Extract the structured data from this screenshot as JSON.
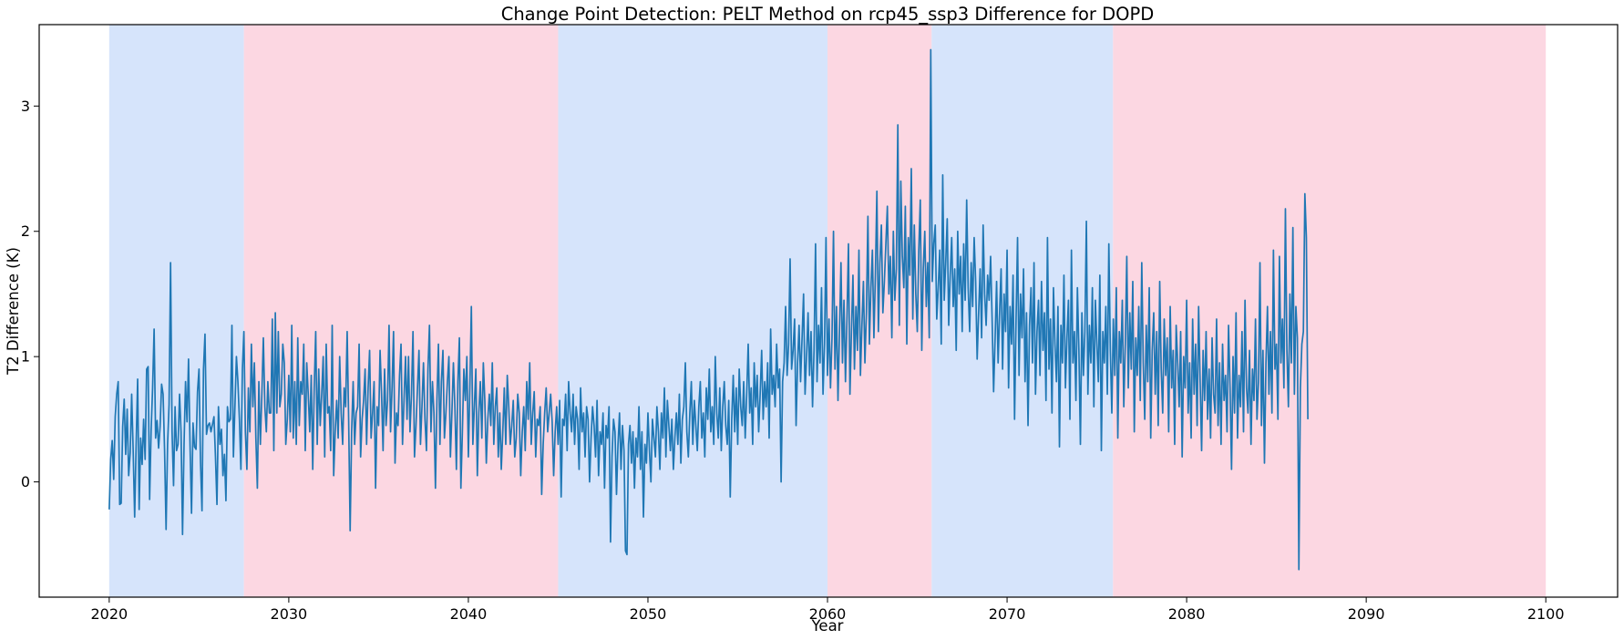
{
  "chart_data": {
    "type": "line",
    "title": "Change Point Detection: PELT Method on rcp45_ssp3 Difference for DOPD",
    "xlabel": "Year",
    "ylabel": "T2 Difference (K)",
    "xlim": [
      2016.1,
      2104.0
    ],
    "ylim": [
      -0.92,
      3.65
    ],
    "x_ticks": [
      2020,
      2030,
      2040,
      2050,
      2060,
      2070,
      2080,
      2090,
      2100
    ],
    "y_ticks": [
      0,
      1,
      2,
      3
    ],
    "grid": false,
    "series_color": "#1f77b4",
    "segment_colors": {
      "blue": "#d6e4fb",
      "pink": "#fcd7e2"
    },
    "segments": [
      {
        "start": 2020.0,
        "end": 2027.5,
        "color": "blue"
      },
      {
        "start": 2027.5,
        "end": 2045.0,
        "color": "pink"
      },
      {
        "start": 2045.0,
        "end": 2060.0,
        "color": "blue"
      },
      {
        "start": 2060.0,
        "end": 2065.8,
        "color": "pink"
      },
      {
        "start": 2065.8,
        "end": 2075.9,
        "color": "blue"
      },
      {
        "start": 2075.9,
        "end": 2100.0,
        "color": "pink"
      }
    ],
    "series": [
      {
        "x_start": 2020.0,
        "x_step": 0.0833333,
        "values": [
          -0.22,
          0.18,
          0.33,
          0.02,
          0.52,
          0.7,
          0.8,
          -0.18,
          -0.17,
          0.44,
          0.66,
          0.22,
          0.58,
          0.05,
          0.23,
          0.7,
          0.25,
          -0.28,
          0.3,
          0.82,
          -0.22,
          0.35,
          0.14,
          0.5,
          0.18,
          0.9,
          0.92,
          -0.14,
          0.41,
          0.75,
          1.22,
          0.35,
          0.49,
          0.27,
          0.44,
          0.78,
          0.7,
          0.25,
          -0.38,
          0.3,
          0.62,
          1.75,
          0.4,
          -0.03,
          0.6,
          0.25,
          0.3,
          0.7,
          0.4,
          -0.42,
          0.3,
          0.8,
          0.48,
          0.98,
          0.3,
          -0.25,
          0.47,
          0.28,
          0.26,
          0.72,
          0.9,
          0.16,
          -0.23,
          0.9,
          1.18,
          0.38,
          0.45,
          0.47,
          0.4,
          0.46,
          0.52,
          0.2,
          -0.18,
          0.6,
          0.3,
          0.42,
          0.05,
          0.22,
          -0.15,
          0.6,
          0.48,
          0.5,
          1.25,
          0.2,
          0.6,
          1.0,
          0.8,
          0.5,
          0.1,
          0.9,
          1.2,
          0.4,
          0.1,
          0.75,
          0.4,
          1.1,
          0.6,
          0.95,
          0.35,
          -0.05,
          0.8,
          0.3,
          0.7,
          1.15,
          0.6,
          0.4,
          0.8,
          0.55,
          0.55,
          1.3,
          0.25,
          1.35,
          0.55,
          1.2,
          0.6,
          0.7,
          1.1,
          0.95,
          0.3,
          0.5,
          0.85,
          0.4,
          1.25,
          0.35,
          0.8,
          0.3,
          1.15,
          0.45,
          0.8,
          0.7,
          1.1,
          0.25,
          0.95,
          0.7,
          0.4,
          0.85,
          0.1,
          0.75,
          1.2,
          0.3,
          0.9,
          0.45,
          0.7,
          1.0,
          0.2,
          1.1,
          0.55,
          0.6,
          0.25,
          1.25,
          0.05,
          0.4,
          0.65,
          0.35,
          1.0,
          0.55,
          0.3,
          0.75,
          0.6,
          1.2,
          0.5,
          -0.39,
          0.4,
          0.8,
          0.3,
          0.55,
          0.6,
          1.1,
          0.2,
          0.5,
          0.65,
          0.9,
          0.3,
          0.75,
          1.05,
          0.35,
          0.55,
          0.8,
          -0.05,
          0.6,
          0.45,
          1.05,
          0.7,
          0.25,
          0.9,
          0.45,
          0.65,
          1.25,
          0.4,
          0.75,
          1.2,
          0.15,
          0.55,
          0.45,
          0.85,
          1.1,
          0.3,
          0.65,
          1.0,
          0.5,
          1.0,
          0.4,
          0.7,
          1.2,
          0.2,
          0.45,
          0.75,
          1.05,
          0.3,
          0.6,
          0.95,
          0.5,
          0.25,
          0.9,
          1.25,
          0.4,
          0.8,
          0.55,
          -0.05,
          0.65,
          1.1,
          0.3,
          0.8,
          1.05,
          0.35,
          0.55,
          0.8,
          1.0,
          0.2,
          0.55,
          0.95,
          0.6,
          0.1,
          0.8,
          1.15,
          -0.05,
          0.4,
          0.9,
          0.65,
          1.0,
          0.2,
          0.75,
          1.4,
          0.3,
          0.6,
          0.9,
          0.05,
          0.55,
          0.8,
          0.35,
          0.95,
          0.65,
          0.15,
          0.5,
          0.7,
          0.45,
          0.95,
          0.3,
          0.6,
          0.75,
          0.2,
          0.55,
          0.1,
          0.4,
          0.75,
          0.3,
          0.85,
          0.6,
          0.3,
          0.45,
          0.65,
          0.2,
          0.35,
          0.7,
          0.55,
          0.05,
          0.4,
          0.6,
          0.25,
          0.8,
          0.5,
          0.95,
          0.3,
          0.55,
          0.72,
          0.2,
          0.5,
          0.45,
          0.6,
          -0.1,
          0.3,
          0.55,
          0.75,
          0.4,
          0.55,
          0.7,
          0.48,
          0.05,
          0.4,
          0.6,
          0.3,
          0.65,
          -0.12,
          0.5,
          0.45,
          0.7,
          0.25,
          0.8,
          0.55,
          0.4,
          0.7,
          0.3,
          0.6,
          0.5,
          0.1,
          0.75,
          0.4,
          0.55,
          0.2,
          0.6,
          0.5,
          0.0,
          0.35,
          0.6,
          0.45,
          0.2,
          0.65,
          0.05,
          0.4,
          0.3,
          0.55,
          -0.05,
          0.45,
          0.35,
          0.6,
          -0.48,
          0.2,
          0.5,
          0.4,
          -0.1,
          0.3,
          0.55,
          0.1,
          0.45,
          0.25,
          -0.55,
          -0.58,
          0.3,
          0.45,
          0.15,
          0.4,
          -0.05,
          0.35,
          0.2,
          0.6,
          0.1,
          0.4,
          -0.28,
          0.3,
          0.15,
          0.55,
          0.25,
          0.0,
          0.5,
          0.35,
          0.2,
          0.6,
          0.4,
          0.1,
          0.55,
          0.35,
          0.75,
          0.2,
          0.65,
          0.45,
          0.25,
          0.5,
          0.1,
          0.35,
          0.55,
          0.3,
          0.7,
          0.15,
          0.5,
          0.6,
          0.95,
          0.4,
          0.2,
          0.55,
          0.8,
          0.3,
          0.65,
          0.45,
          0.25,
          0.6,
          0.8,
          0.35,
          0.55,
          0.2,
          0.75,
          0.5,
          0.9,
          0.4,
          0.6,
          0.3,
          1.0,
          0.55,
          0.35,
          0.75,
          0.25,
          0.6,
          0.8,
          0.45,
          0.3,
          0.65,
          -0.12,
          0.5,
          0.85,
          0.4,
          0.75,
          0.3,
          0.9,
          0.6,
          0.45,
          0.8,
          0.35,
          0.7,
          1.1,
          0.55,
          0.75,
          0.3,
          0.95,
          0.6,
          0.85,
          0.4,
          0.7,
          1.05,
          0.5,
          0.8,
          0.6,
          0.95,
          0.35,
          1.22,
          0.7,
          0.85,
          0.6,
          1.1,
          0.75,
          0.9,
          0.0,
          0.8,
          0.95,
          1.4,
          0.85,
          1.1,
          1.78,
          0.9,
          1.05,
          1.3,
          0.45,
          0.95,
          1.25,
          0.8,
          1.15,
          1.5,
          0.7,
          1.0,
          1.35,
          0.85,
          1.2,
          0.6,
          1.05,
          1.9,
          0.8,
          1.25,
          0.95,
          1.55,
          0.7,
          1.1,
          1.95,
          0.85,
          1.3,
          0.75,
          1.15,
          2.0,
          0.9,
          1.4,
          0.65,
          1.2,
          1.75,
          0.95,
          1.45,
          0.8,
          1.3,
          1.9,
          0.7,
          1.2,
          1.65,
          0.9,
          1.4,
          1.05,
          1.85,
          0.85,
          1.25,
          1.6,
          0.95,
          1.35,
          2.12,
          1.1,
          1.55,
          1.85,
          1.15,
          1.65,
          2.32,
          1.2,
          1.75,
          2.05,
          1.35,
          1.6,
          1.9,
          2.2,
          1.5,
          1.8,
          1.15,
          2.0,
          1.45,
          1.7,
          2.85,
          1.25,
          2.4,
          1.8,
          1.55,
          2.2,
          1.1,
          1.95,
          1.65,
          2.5,
          1.3,
          2.05,
          1.5,
          1.2,
          1.85,
          2.25,
          1.05,
          1.7,
          2.0,
          1.4,
          1.75,
          1.15,
          3.45,
          1.6,
          1.9,
          2.05,
          1.3,
          1.55,
          1.85,
          1.1,
          2.45,
          1.45,
          1.75,
          2.1,
          1.25,
          1.65,
          1.95,
          1.4,
          1.7,
          1.05,
          2.0,
          1.5,
          1.8,
          1.2,
          1.9,
          1.45,
          2.25,
          1.55,
          1.2,
          1.75,
          1.4,
          1.95,
          1.6,
          0.98,
          1.35,
          1.7,
          1.15,
          2.05,
          1.5,
          1.25,
          1.65,
          1.45,
          1.8,
          1.3,
          0.72,
          1.15,
          1.6,
          0.95,
          1.35,
          1.7,
          0.9,
          1.5,
          1.2,
          1.85,
          0.75,
          1.4,
          1.1,
          1.65,
          0.5,
          1.3,
          1.95,
          0.85,
          1.5,
          1.15,
          1.7,
          0.8,
          1.35,
          0.45,
          1.25,
          1.55,
          0.95,
          1.75,
          0.7,
          1.2,
          1.45,
          0.85,
          1.6,
          1.05,
          1.35,
          0.65,
          1.95,
          0.9,
          1.3,
          0.55,
          1.55,
          1.1,
          0.8,
          1.4,
          0.28,
          1.25,
          0.95,
          1.65,
          0.75,
          1.15,
          1.45,
          0.5,
          1.85,
          0.95,
          1.2,
          0.65,
          1.55,
          1.05,
          0.3,
          1.35,
          0.85,
          1.2,
          2.08,
          0.7,
          1.25,
          0.95,
          1.55,
          0.6,
          1.45,
          1.1,
          0.8,
          1.65,
          0.25,
          1.2,
          0.95,
          1.4,
          0.7,
          1.9,
          1.05,
          0.55,
          1.3,
          0.85,
          1.55,
          0.35,
          1.2,
          0.95,
          1.45,
          0.6,
          1.1,
          1.8,
          0.75,
          1.35,
          0.9,
          1.6,
          0.4,
          1.15,
          0.85,
          1.4,
          0.65,
          1.75,
          0.95,
          0.5,
          1.25,
          0.8,
          1.55,
          0.35,
          1.05,
          1.35,
          0.7,
          1.2,
          0.45,
          1.6,
          0.9,
          0.55,
          1.3,
          0.85,
          1.15,
          0.4,
          1.4,
          0.75,
          1.05,
          0.3,
          1.25,
          0.95,
          0.6,
          1.2,
          0.2,
          1.0,
          0.75,
          1.45,
          0.55,
          0.95,
          0.35,
          1.3,
          0.7,
          1.1,
          0.45,
          1.4,
          0.8,
          0.25,
          1.05,
          0.65,
          1.2,
          0.5,
          0.9,
          0.35,
          1.15,
          0.7,
          0.55,
          1.3,
          0.45,
          0.95,
          0.3,
          1.1,
          0.65,
          0.85,
          0.4,
          1.25,
          0.75,
          0.1,
          1.0,
          0.55,
          1.35,
          0.35,
          0.85,
          0.6,
          1.2,
          0.4,
          1.45,
          0.75,
          0.55,
          1.05,
          0.3,
          0.9,
          0.65,
          1.3,
          0.5,
          0.8,
          1.75,
          0.45,
          1.05,
          0.15,
          0.95,
          1.4,
          0.7,
          1.2,
          0.55,
          1.85,
          0.9,
          1.1,
          0.5,
          1.8,
          0.95,
          1.3,
          0.75,
          2.18,
          1.05,
          0.6,
          1.5,
          0.95,
          2.03,
          0.7,
          1.4,
          1.15,
          -0.7,
          0.75,
          1.1,
          1.2,
          2.3,
          1.95,
          0.5
        ]
      }
    ]
  }
}
